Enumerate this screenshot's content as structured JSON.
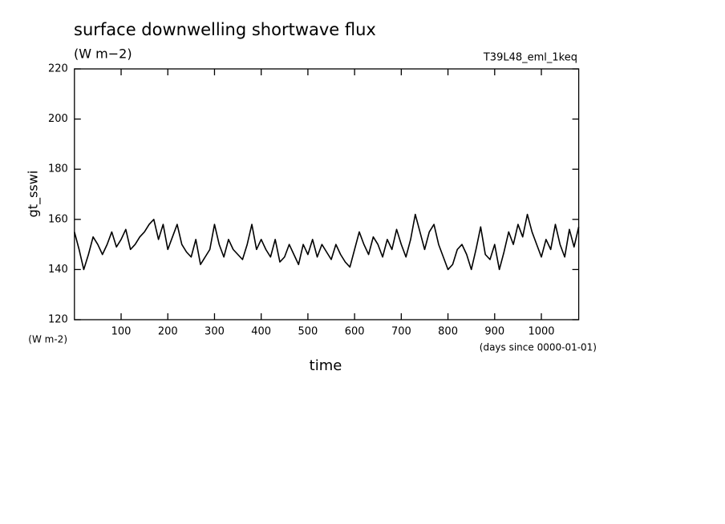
{
  "chart_data": {
    "type": "line",
    "title": "surface downwelling shortwave flux",
    "subtitle": "(W m−2)",
    "annotation": "T39L48_eml_1keq",
    "ylabel": "gt_sswi",
    "yunits": "(W m-2)",
    "xunits": "(days since 0000-01-01)",
    "xlabel": "time",
    "xlim": [
      0,
      1080
    ],
    "ylim": [
      120,
      220
    ],
    "xticks": [
      100,
      200,
      300,
      400,
      500,
      600,
      700,
      800,
      900,
      1000
    ],
    "yticks": [
      120,
      140,
      160,
      180,
      200,
      220
    ],
    "x": [
      0,
      10,
      20,
      30,
      40,
      50,
      60,
      70,
      80,
      90,
      100,
      110,
      120,
      130,
      140,
      150,
      160,
      170,
      180,
      190,
      200,
      210,
      220,
      230,
      240,
      250,
      260,
      270,
      280,
      290,
      300,
      310,
      320,
      330,
      340,
      350,
      360,
      370,
      380,
      390,
      400,
      410,
      420,
      430,
      440,
      450,
      460,
      470,
      480,
      490,
      500,
      510,
      520,
      530,
      540,
      550,
      560,
      570,
      580,
      590,
      600,
      610,
      620,
      630,
      640,
      650,
      660,
      670,
      680,
      690,
      700,
      710,
      720,
      730,
      740,
      750,
      760,
      770,
      780,
      790,
      800,
      810,
      820,
      830,
      840,
      850,
      860,
      870,
      880,
      890,
      900,
      910,
      920,
      930,
      940,
      950,
      960,
      970,
      980,
      990,
      1000,
      1010,
      1020,
      1030,
      1040,
      1050,
      1060,
      1070,
      1080
    ],
    "series": [
      {
        "name": "gt_sswi",
        "color": "#000000",
        "values": [
          155,
          148,
          140,
          146,
          153,
          150,
          146,
          150,
          155,
          149,
          152,
          156,
          148,
          150,
          153,
          155,
          158,
          160,
          152,
          158,
          148,
          153,
          158,
          150,
          147,
          145,
          152,
          142,
          145,
          148,
          158,
          150,
          145,
          152,
          148,
          146,
          144,
          150,
          158,
          148,
          152,
          148,
          145,
          152,
          143,
          145,
          150,
          146,
          142,
          150,
          146,
          152,
          145,
          150,
          147,
          144,
          150,
          146,
          143,
          141,
          148,
          155,
          150,
          146,
          153,
          150,
          145,
          152,
          148,
          156,
          150,
          145,
          152,
          162,
          155,
          148,
          155,
          158,
          150,
          145,
          140,
          142,
          148,
          150,
          146,
          140,
          148,
          157,
          146,
          144,
          150,
          140,
          147,
          155,
          150,
          158,
          153,
          162,
          155,
          150,
          145,
          152,
          148,
          158,
          150,
          145,
          156,
          149,
          157
        ]
      }
    ]
  }
}
